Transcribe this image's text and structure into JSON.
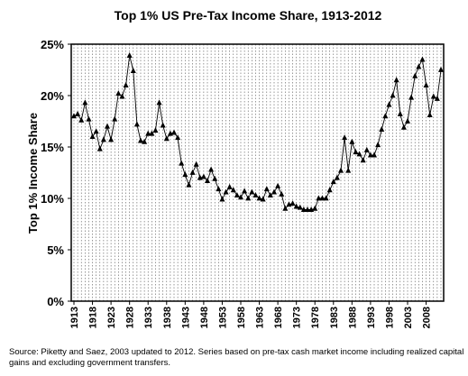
{
  "chart_data": {
    "type": "line",
    "title": "Top 1% US Pre-Tax Income Share, 1913-2012",
    "xlabel": "",
    "ylabel": "Top 1% Income Share",
    "ylim": [
      0,
      25
    ],
    "y_ticks": [
      "0%",
      "5%",
      "10%",
      "15%",
      "20%",
      "25%"
    ],
    "x_ticks": [
      "1913",
      "1918",
      "1923",
      "1928",
      "1933",
      "1938",
      "1943",
      "1948",
      "1953",
      "1958",
      "1963",
      "1968",
      "1973",
      "1978",
      "1983",
      "1988",
      "1993",
      "1998",
      "2003",
      "2008"
    ],
    "xlim": [
      1913,
      2012
    ],
    "grid": "vertical dotted lines at each year",
    "marker": "triangle",
    "series": [
      {
        "x": [
          1913,
          1914,
          1915,
          1916,
          1917,
          1918,
          1919,
          1920,
          1921,
          1922,
          1923,
          1924,
          1925,
          1926,
          1927,
          1928,
          1929,
          1930,
          1931,
          1932,
          1933,
          1934,
          1935,
          1936,
          1937,
          1938,
          1939,
          1940,
          1941,
          1942,
          1943,
          1944,
          1945,
          1946,
          1947,
          1948,
          1949,
          1950,
          1951,
          1952,
          1953,
          1954,
          1955,
          1956,
          1957,
          1958,
          1959,
          1960,
          1961,
          1962,
          1963,
          1964,
          1965,
          1966,
          1967,
          1968,
          1969,
          1970,
          1971,
          1972,
          1973,
          1974,
          1975,
          1976,
          1977,
          1978,
          1979,
          1980,
          1981,
          1982,
          1983,
          1984,
          1985,
          1986,
          1987,
          1988,
          1989,
          1990,
          1991,
          1992,
          1993,
          1994,
          1995,
          1996,
          1997,
          1998,
          1999,
          2000,
          2001,
          2002,
          2003,
          2004,
          2005,
          2006,
          2007,
          2008,
          2009,
          2010,
          2011,
          2012
        ],
        "values": [
          18.0,
          18.2,
          17.6,
          19.3,
          17.7,
          16.0,
          16.5,
          14.8,
          15.7,
          17.0,
          15.7,
          17.7,
          20.2,
          19.9,
          21.0,
          23.9,
          22.4,
          17.2,
          15.6,
          15.5,
          16.3,
          16.3,
          16.6,
          19.3,
          17.1,
          15.8,
          16.3,
          16.4,
          15.9,
          13.4,
          12.3,
          11.3,
          12.5,
          13.3,
          12.0,
          12.1,
          11.7,
          12.8,
          11.9,
          10.9,
          9.9,
          10.6,
          11.1,
          10.8,
          10.3,
          10.1,
          10.7,
          10.0,
          10.6,
          10.3,
          10.0,
          9.9,
          10.9,
          10.3,
          10.6,
          11.2,
          10.4,
          9.0,
          9.4,
          9.5,
          9.2,
          9.1,
          8.9,
          8.9,
          8.9,
          9.0,
          10.0,
          10.0,
          10.0,
          10.8,
          11.6,
          12.0,
          12.7,
          15.9,
          12.7,
          15.5,
          14.5,
          14.3,
          13.7,
          14.7,
          14.2,
          14.2,
          15.2,
          16.7,
          18.0,
          19.1,
          20.0,
          21.5,
          18.2,
          16.9,
          17.5,
          19.8,
          21.9,
          22.8,
          23.5,
          21.0,
          18.1,
          19.9,
          19.7,
          22.5
        ]
      }
    ]
  },
  "footnote": "Source: Piketty and Saez, 2003 updated to 2012. Series based on pre-tax cash market income including realized capital gains and excluding government transfers.",
  "colors": {
    "line": "#000000",
    "marker": "#000000",
    "grid": "#555555"
  }
}
